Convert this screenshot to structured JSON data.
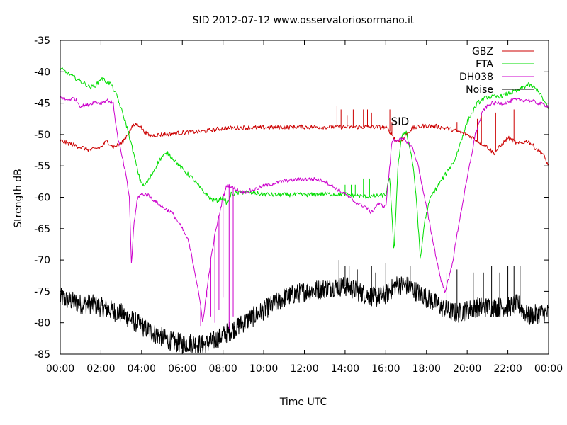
{
  "chart_data": {
    "type": "line",
    "title": "SID 2012-07-12 www.osservatoriosormano.it",
    "xlabel": "Time UTC",
    "ylabel": "Strength dB",
    "x_unit": "hours UTC",
    "xlim": [
      0,
      24
    ],
    "ylim": [
      -85,
      -35
    ],
    "grid": false,
    "legend_position": "top-right",
    "x_ticks": [
      {
        "label": "00:00",
        "value": 0
      },
      {
        "label": "02:00",
        "value": 2
      },
      {
        "label": "04:00",
        "value": 4
      },
      {
        "label": "06:00",
        "value": 6
      },
      {
        "label": "08:00",
        "value": 8
      },
      {
        "label": "10:00",
        "value": 10
      },
      {
        "label": "12:00",
        "value": 12
      },
      {
        "label": "14:00",
        "value": 14
      },
      {
        "label": "16:00",
        "value": 16
      },
      {
        "label": "18:00",
        "value": 18
      },
      {
        "label": "20:00",
        "value": 20
      },
      {
        "label": "22:00",
        "value": 22
      },
      {
        "label": "00:00",
        "value": 24
      }
    ],
    "y_ticks": [
      -35,
      -40,
      -45,
      -50,
      -55,
      -60,
      -65,
      -70,
      -75,
      -80,
      -85
    ],
    "annotations": [
      {
        "text": "SID",
        "x": 16.7,
        "y": -48.5
      }
    ],
    "series": [
      {
        "name": "GBZ",
        "color": "#cc0000",
        "points": [
          [
            0,
            -51
          ],
          [
            0.5,
            -51.5
          ],
          [
            1,
            -52
          ],
          [
            1.5,
            -52.5
          ],
          [
            2,
            -52
          ],
          [
            2.3,
            -51
          ],
          [
            2.6,
            -52
          ],
          [
            3,
            -51.5
          ],
          [
            3.3,
            -50
          ],
          [
            3.5,
            -49
          ],
          [
            3.7,
            -48.3
          ],
          [
            3.9,
            -48.5
          ],
          [
            4.1,
            -49.5
          ],
          [
            4.4,
            -50.2
          ],
          [
            5,
            -50
          ],
          [
            6,
            -49.7
          ],
          [
            7,
            -49.5
          ],
          [
            8,
            -49
          ],
          [
            9,
            -48.9
          ],
          [
            10,
            -48.9
          ],
          [
            11,
            -48.8
          ],
          [
            12,
            -48.8
          ],
          [
            13,
            -48.8
          ],
          [
            14,
            -48.8
          ],
          [
            15,
            -48.8
          ],
          [
            15.5,
            -48.8
          ],
          [
            16,
            -48.9
          ],
          [
            16.2,
            -49.5
          ],
          [
            16.5,
            -51
          ],
          [
            16.8,
            -51
          ],
          [
            17,
            -50
          ],
          [
            17.3,
            -49
          ],
          [
            17.7,
            -48.7
          ],
          [
            18,
            -48.6
          ],
          [
            18.5,
            -48.7
          ],
          [
            19,
            -49
          ],
          [
            19.5,
            -49.5
          ],
          [
            20,
            -50
          ],
          [
            20.5,
            -51
          ],
          [
            21,
            -52
          ],
          [
            21.3,
            -53
          ],
          [
            21.6,
            -52
          ],
          [
            22,
            -50.5
          ],
          [
            22.5,
            -51.5
          ],
          [
            23,
            -51
          ],
          [
            23.3,
            -52
          ],
          [
            23.7,
            -53
          ],
          [
            24,
            -55
          ]
        ],
        "spikes": [
          [
            13.6,
            -45.5
          ],
          [
            13.8,
            -46
          ],
          [
            14.1,
            -47
          ],
          [
            14.4,
            -46
          ],
          [
            14.9,
            -46
          ],
          [
            15.1,
            -46
          ],
          [
            15.3,
            -46.5
          ],
          [
            16.2,
            -46
          ],
          [
            16.3,
            -48
          ],
          [
            19.5,
            -48
          ],
          [
            20.5,
            -47.5
          ],
          [
            20.7,
            -46.5
          ],
          [
            21.4,
            -46.5
          ],
          [
            22.3,
            -46
          ]
        ]
      },
      {
        "name": "FTA",
        "color": "#00dd00",
        "points": [
          [
            0,
            -39.5
          ],
          [
            0.5,
            -40.5
          ],
          [
            1,
            -41.5
          ],
          [
            1.5,
            -42.5
          ],
          [
            1.8,
            -42
          ],
          [
            2,
            -41
          ],
          [
            2.5,
            -42
          ],
          [
            2.8,
            -44
          ],
          [
            3,
            -46
          ],
          [
            3.3,
            -49
          ],
          [
            3.6,
            -53
          ],
          [
            3.9,
            -57
          ],
          [
            4.1,
            -58.3
          ],
          [
            4.4,
            -57
          ],
          [
            4.8,
            -54.5
          ],
          [
            5,
            -53.5
          ],
          [
            5.3,
            -53
          ],
          [
            5.6,
            -54
          ],
          [
            6,
            -55.5
          ],
          [
            6.5,
            -57
          ],
          [
            7,
            -59
          ],
          [
            7.5,
            -60.5
          ],
          [
            7.8,
            -60.5
          ],
          [
            8,
            -60
          ],
          [
            8.2,
            -61
          ],
          [
            8.4,
            -59.5
          ],
          [
            9,
            -59.2
          ],
          [
            10,
            -59.5
          ],
          [
            10.5,
            -59.6
          ],
          [
            11,
            -59.6
          ],
          [
            12,
            -59.6
          ],
          [
            13,
            -59.5
          ],
          [
            13.5,
            -59.5
          ],
          [
            14,
            -59.5
          ],
          [
            14.5,
            -59.7
          ],
          [
            15,
            -59.9
          ],
          [
            15.5,
            -59.8
          ],
          [
            16,
            -59.6
          ],
          [
            16.1,
            -58
          ],
          [
            16.2,
            -57
          ],
          [
            16.4,
            -69
          ],
          [
            16.6,
            -55
          ],
          [
            16.8,
            -50
          ],
          [
            17,
            -49.5
          ],
          [
            17.3,
            -54
          ],
          [
            17.5,
            -60
          ],
          [
            17.7,
            -70
          ],
          [
            17.9,
            -64
          ],
          [
            18.2,
            -60
          ],
          [
            18.6,
            -58
          ],
          [
            19,
            -56
          ],
          [
            19.4,
            -54
          ],
          [
            19.7,
            -51
          ],
          [
            20,
            -48
          ],
          [
            20.5,
            -45
          ],
          [
            21,
            -44
          ],
          [
            21.5,
            -44
          ],
          [
            22,
            -43.5
          ],
          [
            22.5,
            -43
          ],
          [
            23,
            -42
          ],
          [
            23.5,
            -43
          ],
          [
            24,
            -46
          ]
        ],
        "spikes": [
          [
            14,
            -58
          ],
          [
            14.3,
            -58
          ],
          [
            14.5,
            -58
          ],
          [
            14.9,
            -57
          ],
          [
            15.2,
            -57
          ]
        ]
      },
      {
        "name": "DH038",
        "color": "#cc00cc",
        "points": [
          [
            0,
            -44
          ],
          [
            0.3,
            -44.5
          ],
          [
            0.7,
            -44.2
          ],
          [
            1,
            -45.5
          ],
          [
            1.3,
            -45.3
          ],
          [
            1.7,
            -44.8
          ],
          [
            2,
            -45
          ],
          [
            2.3,
            -44.5
          ],
          [
            2.6,
            -45
          ],
          [
            2.8,
            -50
          ],
          [
            3,
            -53
          ],
          [
            3.2,
            -56
          ],
          [
            3.4,
            -60
          ],
          [
            3.5,
            -71
          ],
          [
            3.6,
            -65
          ],
          [
            3.8,
            -60
          ],
          [
            4,
            -59.5
          ],
          [
            4.3,
            -59.6
          ],
          [
            4.6,
            -60.5
          ],
          [
            5,
            -61.5
          ],
          [
            5.5,
            -62.5
          ],
          [
            6,
            -65
          ],
          [
            6.3,
            -67
          ],
          [
            6.5,
            -70
          ],
          [
            6.8,
            -75
          ],
          [
            7,
            -80
          ],
          [
            7.2,
            -75
          ],
          [
            7.4,
            -70
          ],
          [
            7.6,
            -66
          ],
          [
            7.8,
            -63
          ],
          [
            8,
            -60
          ],
          [
            8.2,
            -58
          ],
          [
            8.5,
            -58.5
          ],
          [
            9,
            -59.2
          ],
          [
            9.5,
            -58.8
          ],
          [
            10,
            -58.2
          ],
          [
            10.5,
            -57.8
          ],
          [
            11,
            -57.4
          ],
          [
            11.5,
            -57.2
          ],
          [
            12,
            -57.1
          ],
          [
            12.5,
            -57.1
          ],
          [
            13,
            -57.4
          ],
          [
            13.5,
            -58.5
          ],
          [
            14,
            -59.5
          ],
          [
            14.5,
            -60.8
          ],
          [
            15,
            -61.5
          ],
          [
            15.3,
            -62.5
          ],
          [
            15.6,
            -61
          ],
          [
            16,
            -61.5
          ],
          [
            16.1,
            -58
          ],
          [
            16.2,
            -55
          ],
          [
            16.3,
            -51
          ],
          [
            16.5,
            -50.8
          ],
          [
            16.8,
            -50.8
          ],
          [
            17,
            -51
          ],
          [
            17.3,
            -52
          ],
          [
            17.6,
            -55
          ],
          [
            17.9,
            -60
          ],
          [
            18.2,
            -65
          ],
          [
            18.5,
            -70
          ],
          [
            18.7,
            -73
          ],
          [
            18.9,
            -75
          ],
          [
            19.1,
            -73
          ],
          [
            19.3,
            -70
          ],
          [
            19.6,
            -64
          ],
          [
            20,
            -57
          ],
          [
            20.4,
            -50
          ],
          [
            20.8,
            -46
          ],
          [
            21.2,
            -45
          ],
          [
            21.8,
            -45
          ],
          [
            22.3,
            -44.5
          ],
          [
            23,
            -44.5
          ],
          [
            23.5,
            -45
          ],
          [
            24,
            -45.5
          ]
        ],
        "spikes": [
          [
            6.9,
            -80.5
          ],
          [
            7.2,
            -76
          ],
          [
            7.4,
            -79
          ],
          [
            7.6,
            -80
          ],
          [
            7.8,
            -78
          ],
          [
            8,
            -76
          ],
          [
            8.3,
            -81
          ],
          [
            8.5,
            -79
          ]
        ]
      },
      {
        "name": "Noise",
        "color": "#000000",
        "points": [
          [
            0,
            -76
          ],
          [
            0.5,
            -76.5
          ],
          [
            1,
            -77
          ],
          [
            1.5,
            -77
          ],
          [
            2,
            -77.5
          ],
          [
            2.5,
            -78
          ],
          [
            3,
            -78.5
          ],
          [
            3.5,
            -79.5
          ],
          [
            4,
            -80.5
          ],
          [
            4.5,
            -81.5
          ],
          [
            5,
            -82.3
          ],
          [
            5.5,
            -83
          ],
          [
            6,
            -83.3
          ],
          [
            6.5,
            -83.2
          ],
          [
            7,
            -83.5
          ],
          [
            7.5,
            -83
          ],
          [
            8,
            -82
          ],
          [
            8.5,
            -81
          ],
          [
            9,
            -80
          ],
          [
            9.5,
            -79
          ],
          [
            10,
            -78
          ],
          [
            10.5,
            -77
          ],
          [
            11,
            -76
          ],
          [
            11.5,
            -75.5
          ],
          [
            12,
            -75
          ],
          [
            12.5,
            -74.8
          ],
          [
            13,
            -74.5
          ],
          [
            13.5,
            -74.3
          ],
          [
            14,
            -74.2
          ],
          [
            14.5,
            -74.8
          ],
          [
            15,
            -75.5
          ],
          [
            15.5,
            -76
          ],
          [
            16,
            -75.5
          ],
          [
            16.5,
            -74
          ],
          [
            17,
            -74
          ],
          [
            17.5,
            -75
          ],
          [
            18,
            -76
          ],
          [
            18.5,
            -77
          ],
          [
            19,
            -78
          ],
          [
            19.5,
            -78.5
          ],
          [
            20,
            -78
          ],
          [
            20.5,
            -77.5
          ],
          [
            21,
            -77.5
          ],
          [
            21.5,
            -77.5
          ],
          [
            22,
            -77.5
          ],
          [
            22.5,
            -77
          ],
          [
            23,
            -79
          ],
          [
            23.5,
            -78.5
          ],
          [
            24,
            -78.5
          ]
        ],
        "spikes": [
          [
            13.7,
            -70
          ],
          [
            14,
            -71
          ],
          [
            14.2,
            -71
          ],
          [
            14.6,
            -71.5
          ],
          [
            15.3,
            -71
          ],
          [
            15.5,
            -72
          ],
          [
            16,
            -70.5
          ],
          [
            17.2,
            -71
          ],
          [
            19,
            -72
          ],
          [
            19.5,
            -71.5
          ],
          [
            20.3,
            -72
          ],
          [
            20.8,
            -72
          ],
          [
            21.2,
            -71
          ],
          [
            21.6,
            -72
          ],
          [
            22,
            -71
          ],
          [
            22.3,
            -71
          ],
          [
            22.6,
            -71
          ]
        ]
      }
    ]
  }
}
